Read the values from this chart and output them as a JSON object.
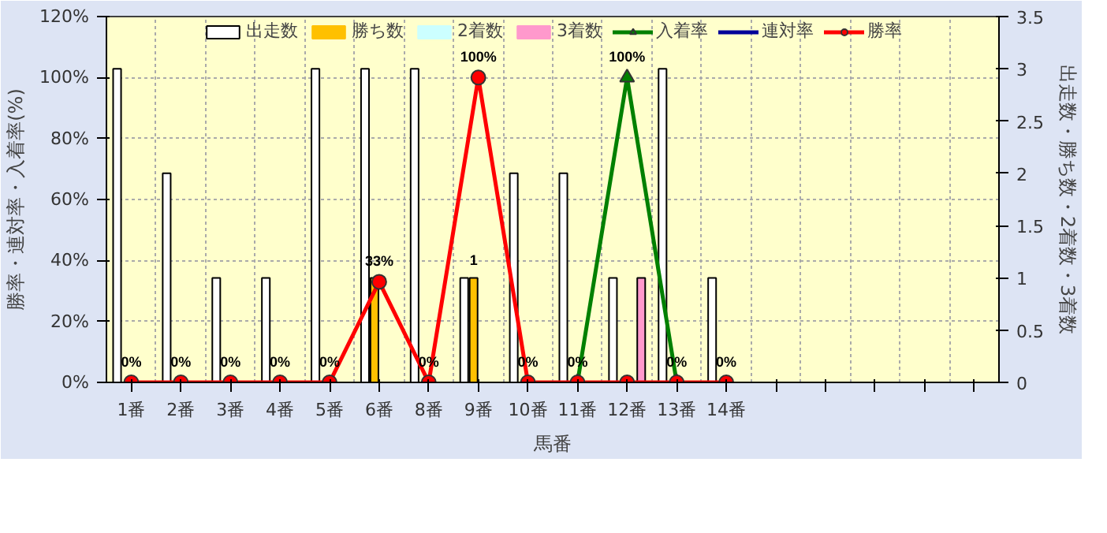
{
  "chart_data": {
    "type": "bar",
    "xlabel": "馬番",
    "ylabel": "勝率・連対率・入着率(%)",
    "y2label": "出走数・勝ち数・2着数・3着数",
    "categories": [
      "1番",
      "2番",
      "3番",
      "4番",
      "5番",
      "6番",
      "8番",
      "9番",
      "10番",
      "11番",
      "12番",
      "13番",
      "14番",
      null,
      null,
      null,
      null,
      null
    ],
    "series": [
      {
        "name": "出走数",
        "axis": "y2",
        "color": "#ffffff",
        "values": [
          3,
          2,
          1,
          1,
          3,
          3,
          3,
          1,
          2,
          2,
          1,
          3,
          1,
          null,
          null,
          null,
          null,
          null
        ]
      },
      {
        "name": "勝ち数",
        "axis": "y2",
        "color": "#ffc000",
        "values": [
          0,
          0,
          0,
          0,
          0,
          1,
          0,
          1,
          0,
          0,
          0,
          0,
          0,
          null,
          null,
          null,
          null,
          null
        ],
        "value_labels": [
          null,
          null,
          null,
          null,
          null,
          null,
          null,
          "1",
          null,
          null,
          null,
          null,
          null,
          null,
          null,
          null,
          null,
          null
        ]
      },
      {
        "name": "2着数",
        "axis": "y2",
        "color": "#ccffff",
        "values": [
          0,
          0,
          0,
          0,
          0,
          0,
          0,
          0,
          0,
          0,
          0,
          0,
          0,
          null,
          null,
          null,
          null,
          null
        ]
      },
      {
        "name": "3着数",
        "axis": "y2",
        "color": "#ff99cc",
        "values": [
          0,
          0,
          0,
          0,
          0,
          0,
          0,
          0,
          0,
          0,
          1,
          0,
          0,
          null,
          null,
          null,
          null,
          null
        ]
      },
      {
        "name": "入着率",
        "type": "line",
        "color": "#008000",
        "marker": "triangle",
        "values": [
          null,
          null,
          null,
          null,
          null,
          null,
          null,
          null,
          null,
          0,
          100,
          0,
          null,
          null,
          null,
          null,
          null,
          null
        ],
        "value_labels": [
          null,
          null,
          null,
          null,
          null,
          null,
          null,
          null,
          null,
          null,
          "100%",
          null,
          null,
          null,
          null,
          null,
          null,
          null
        ]
      },
      {
        "name": "連対率",
        "type": "line",
        "color": "#000099",
        "marker": "diamond",
        "values": [
          null,
          null,
          null,
          null,
          null,
          null,
          null,
          null,
          null,
          null,
          null,
          null,
          null,
          null,
          null,
          null,
          null,
          null
        ]
      },
      {
        "name": "勝率",
        "type": "line",
        "color": "#ff0000",
        "marker": "circle",
        "values": [
          0,
          0,
          0,
          0,
          0,
          33,
          0,
          100,
          0,
          0,
          0,
          0,
          0,
          null,
          null,
          null,
          null,
          null
        ],
        "value_labels": [
          "0%",
          "0%",
          "0%",
          "0%",
          "0%",
          "33%",
          "0%",
          "100%",
          "0%",
          "0%",
          null,
          "0%",
          "0%",
          null,
          null,
          null,
          null,
          null
        ]
      }
    ],
    "ylim": [
      0,
      120
    ],
    "yticks": [
      {
        "value": 0,
        "label": "0%"
      },
      {
        "value": 20,
        "label": "20%"
      },
      {
        "value": 40,
        "label": "40%"
      },
      {
        "value": 60,
        "label": "60%"
      },
      {
        "value": 80,
        "label": "80%"
      },
      {
        "value": 100,
        "label": "100%"
      },
      {
        "value": 120,
        "label": "120%"
      }
    ],
    "y2lim": [
      0,
      3.5
    ],
    "y2ticks": [
      0,
      0.5,
      1,
      1.5,
      2,
      2.5,
      3,
      3.5
    ],
    "grid": true,
    "legend": "top"
  }
}
